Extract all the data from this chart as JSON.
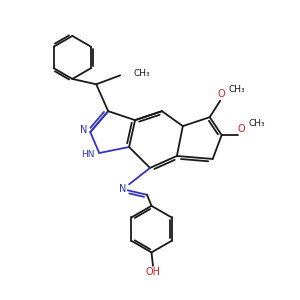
{
  "background_color": "#ffffff",
  "bond_color": "#1a1a1a",
  "nitrogen_color": "#3333bb",
  "oxygen_color": "#cc2222",
  "lw": 1.3,
  "figsize": [
    3.0,
    3.0
  ],
  "dpi": 100,
  "xlim": [
    0,
    10
  ],
  "ylim": [
    0,
    10
  ]
}
